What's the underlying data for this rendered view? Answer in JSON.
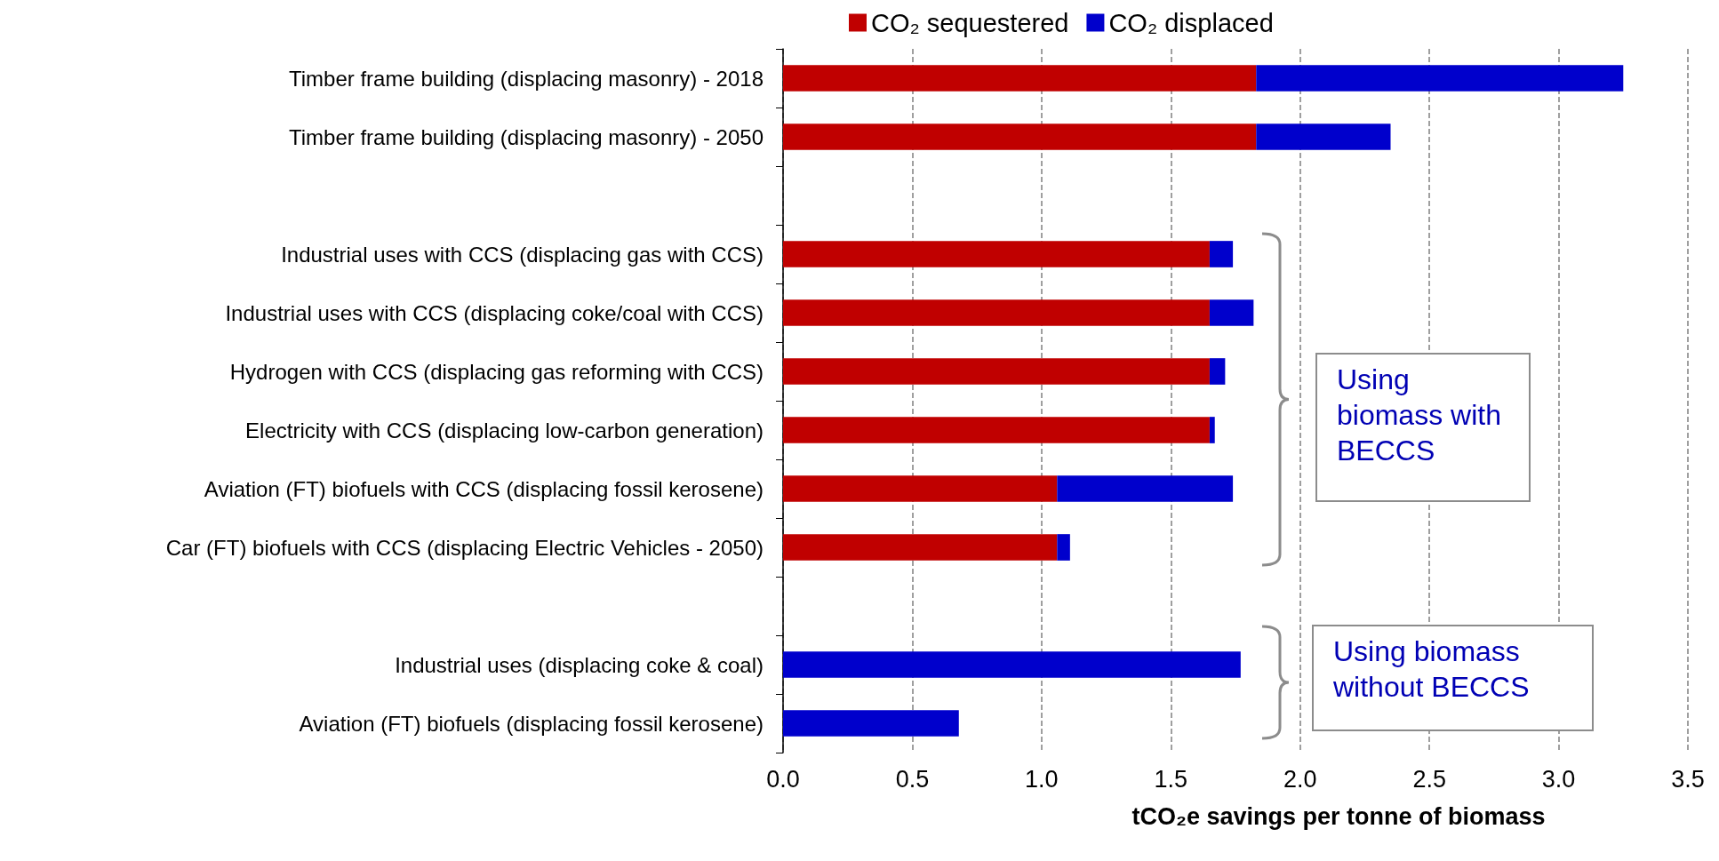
{
  "chart_data": {
    "type": "bar",
    "orientation": "horizontal",
    "stacked": true,
    "xlabel": "tCO₂e savings per tonne of biomass",
    "categories": [
      "Timber frame building (displacing masonry) - 2018",
      "Timber frame building (displacing masonry) - 2050",
      null,
      "Industrial uses with CCS (displacing gas with CCS)",
      "Industrial uses with CCS (displacing coke/coal with CCS)",
      "Hydrogen with CCS (displacing gas reforming with CCS)",
      "Electricity with CCS (displacing low-carbon generation)",
      "Aviation (FT) biofuels with CCS (displacing fossil kerosene)",
      "Car (FT) biofuels with CCS (displacing Electric Vehicles - 2050)",
      null,
      "Industrial uses (displacing coke & coal)",
      "Aviation (FT) biofuels (displacing fossil kerosene)"
    ],
    "series": [
      {
        "name": "CO₂ sequestered",
        "color": "#c00000",
        "values": [
          1.83,
          1.83,
          null,
          1.65,
          1.65,
          1.65,
          1.65,
          1.06,
          1.06,
          null,
          null,
          null
        ]
      },
      {
        "name": "CO₂ displaced",
        "color": "#0000cc",
        "values": [
          1.42,
          0.52,
          null,
          0.09,
          0.17,
          0.06,
          0.02,
          0.68,
          0.05,
          null,
          1.77,
          0.68
        ]
      }
    ],
    "xlim": [
      0,
      3.5
    ],
    "xticks": [
      {
        "value": 0,
        "label": "0.0"
      },
      0.5,
      {
        "value": 1,
        "label": "1.0"
      },
      1.5,
      {
        "value": 2,
        "label": "2.0"
      },
      2.5,
      {
        "value": 3,
        "label": "3.0"
      },
      3.5
    ],
    "grid": "x",
    "legend": "top",
    "annotations": [
      "Using biomass with BECCS",
      "Using biomass without BECCS"
    ]
  }
}
